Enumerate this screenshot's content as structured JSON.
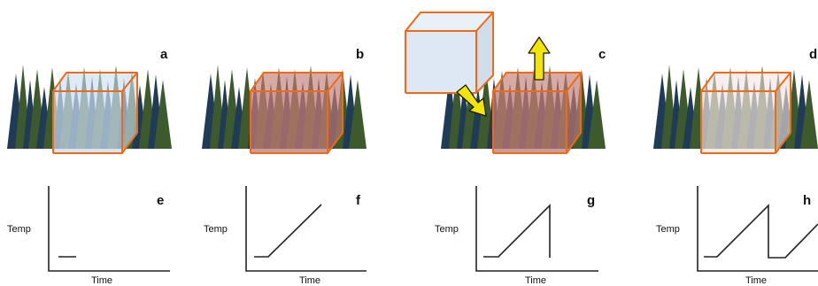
{
  "panels": [
    {
      "letter": "a",
      "volume_tint": "#c9dcef",
      "tint_opacity": 0.72
    },
    {
      "letter": "b",
      "volume_tint": "#c07a73",
      "tint_opacity": 0.75
    },
    {
      "letter": "c",
      "volume_tint": "#c07a73",
      "tint_opacity": 0.75
    },
    {
      "letter": "d",
      "volume_tint": "#f1e3e0",
      "tint_opacity": 0.7
    }
  ],
  "graphs": [
    {
      "letter": "e",
      "y_label": "Temp",
      "x_label": "Time"
    },
    {
      "letter": "f",
      "y_label": "Temp",
      "x_label": "Time"
    },
    {
      "letter": "g",
      "y_label": "Temp",
      "x_label": "Time"
    },
    {
      "letter": "h",
      "y_label": "Temp",
      "x_label": "Time"
    }
  ],
  "colors": {
    "box_edge": "#ee6a14",
    "tree_dark": "#1f3b57",
    "tree_light": "#3d5a2c",
    "arrow_fill": "#f2e600",
    "free_cube_fill": "#dde8f4"
  },
  "icons": {
    "forest": "conifer-tree-row",
    "arrow_up": "yellow-arrow-up-icon",
    "arrow_down": "yellow-arrow-down-icon"
  }
}
